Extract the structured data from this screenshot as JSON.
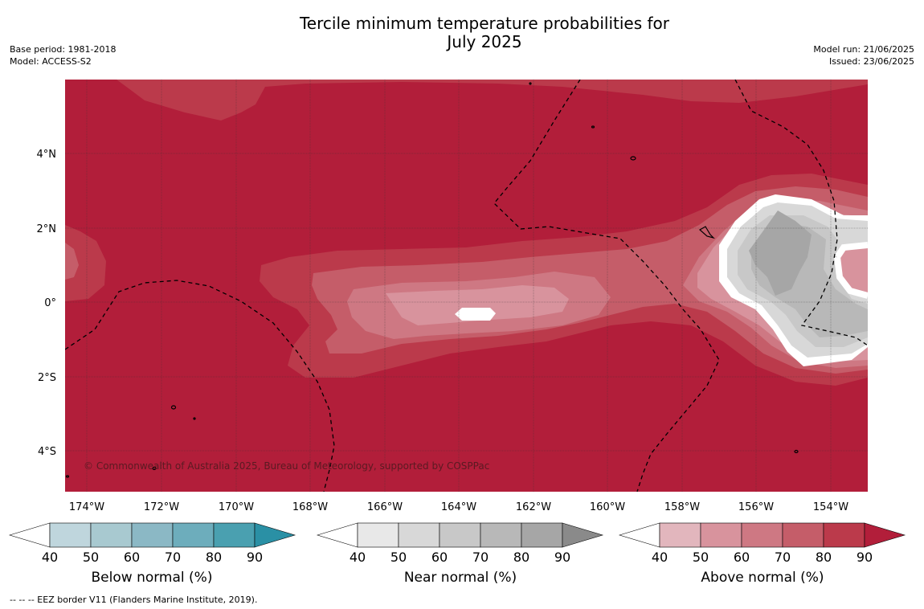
{
  "header": {
    "title_line1": "Tercile minimum temperature probabilities for",
    "title_line2": "July 2025",
    "base_period": "Base period: 1981-2018",
    "model": "Model: ACCESS-S2",
    "model_run": "Model run: 21/06/2025",
    "issued": "Issued: 23/06/2025"
  },
  "map": {
    "type": "contour",
    "lon_range": [
      -174.6,
      -152.9
    ],
    "lat_range": [
      -5.0,
      5.9
    ],
    "lon_ticks": [
      "174°W",
      "172°W",
      "170°W",
      "168°W",
      "166°W",
      "164°W",
      "162°W",
      "160°W",
      "158°W",
      "156°W",
      "154°W"
    ],
    "lat_ticks": [
      "4°N",
      "2°N",
      "0°",
      "2°S",
      "4°S"
    ],
    "grid": true,
    "background_category": "Above normal 90%",
    "copyright": "© Commonwealth of Australia 2025, Bureau of Meteorology, supported by COSPPac",
    "eez_border_style": "dashed"
  },
  "colorbars": [
    {
      "id": "below",
      "label": "Below normal (%)",
      "ticks": [
        "40",
        "50",
        "60",
        "70",
        "80",
        "90"
      ],
      "colors": [
        "#ffffff",
        "#bfd6dd",
        "#a8c9d0",
        "#8bb8c5",
        "#6dadbc",
        "#4aa0b0",
        "#2a90a5"
      ]
    },
    {
      "id": "near",
      "label": "Near normal (%)",
      "ticks": [
        "40",
        "50",
        "60",
        "70",
        "80",
        "90"
      ],
      "colors": [
        "#ffffff",
        "#e8e8e8",
        "#d8d8d8",
        "#c8c8c8",
        "#b8b8b8",
        "#a6a6a6",
        "#8a8a8a"
      ]
    },
    {
      "id": "above",
      "label": "Above normal (%)",
      "ticks": [
        "40",
        "50",
        "60",
        "70",
        "80",
        "90"
      ],
      "colors": [
        "#ffffff",
        "#e2b6bd",
        "#d8939d",
        "#ce7883",
        "#c55d69",
        "#bb3a4b",
        "#b21e3a"
      ]
    }
  ],
  "footer": {
    "eez_note": "--  --  -- EEZ border V11 (Flanders Marine Institute, 2019)."
  }
}
